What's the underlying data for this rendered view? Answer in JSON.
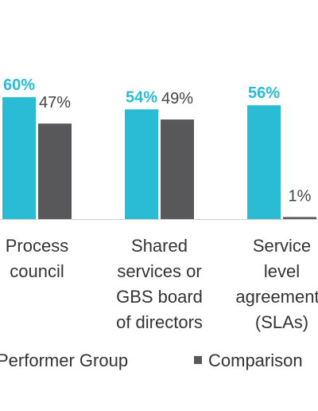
{
  "chart_data": {
    "type": "bar",
    "categories": [
      "Process council",
      "Shared services or GBS board of directors",
      "Service level agreements (SLAs)"
    ],
    "series": [
      {
        "name": "Performer Group",
        "color": "#29bcd4",
        "values": [
          60,
          54,
          56
        ],
        "value_labels": [
          "60%",
          "54%",
          "56%"
        ]
      },
      {
        "name": "Comparison",
        "color": "#58585a",
        "values": [
          47,
          49,
          1
        ],
        "value_labels": [
          "47%",
          "49%",
          "1%"
        ]
      }
    ]
  }
}
